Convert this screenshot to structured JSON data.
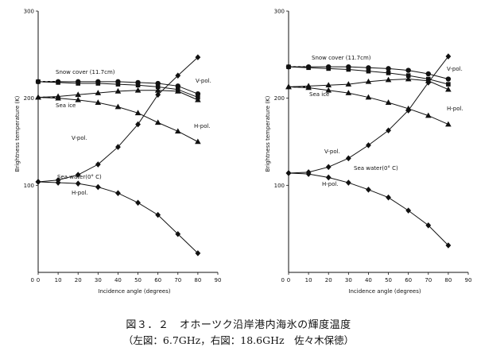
{
  "figure": {
    "caption": "図３．２　オホーツク沿岸港内海氷の輝度温度",
    "subcaption": "（左図：6.7GHz，右図：18.6GHz　佐々木保徳）"
  },
  "chart_data": [
    {
      "type": "line",
      "title": "",
      "xlabel": "Incidence angle (degrees)",
      "ylabel": "Brightness temperature (K)",
      "xlim": [
        0,
        90
      ],
      "ylim": [
        0,
        300
      ],
      "xticks": [
        0,
        10,
        20,
        30,
        40,
        50,
        60,
        70,
        80,
        90
      ],
      "yticks": [
        100,
        200,
        300
      ],
      "grid": false,
      "annotations": [
        "Snow cover (11.7cm)",
        "Sea ice",
        "V-pol.",
        "H-pol.",
        "V-pol.",
        "Sea water(0° C)",
        "H-pol."
      ],
      "series": [
        {
          "marker": "circle",
          "x": [
            0,
            10,
            20,
            30,
            40,
            50,
            60,
            70,
            80
          ],
          "y": [
            219,
            219,
            219,
            219,
            219,
            218,
            217,
            214,
            205
          ]
        },
        {
          "marker": "square",
          "x": [
            0,
            10,
            20,
            30,
            40,
            50,
            60,
            70,
            80
          ],
          "y": [
            219,
            218,
            217,
            217,
            216,
            215,
            213,
            210,
            201
          ]
        },
        {
          "marker": "triangle",
          "x": [
            0,
            10,
            20,
            30,
            40,
            50,
            60,
            70,
            80
          ],
          "y": [
            201,
            202,
            204,
            206,
            208,
            209,
            209,
            208,
            198
          ]
        },
        {
          "marker": "triangle",
          "x": [
            0,
            10,
            20,
            30,
            40,
            50,
            60,
            70,
            80
          ],
          "y": [
            201,
            200,
            198,
            195,
            190,
            183,
            172,
            162,
            150
          ]
        },
        {
          "marker": "diamond",
          "x": [
            0,
            10,
            20,
            30,
            40,
            50,
            60,
            70,
            80
          ],
          "y": [
            104,
            106,
            112,
            124,
            144,
            170,
            204,
            226,
            247
          ]
        },
        {
          "marker": "diamond",
          "x": [
            0,
            10,
            20,
            30,
            40,
            50,
            60,
            70,
            80
          ],
          "y": [
            104,
            103,
            102,
            98,
            91,
            80,
            66,
            44,
            22
          ]
        }
      ]
    },
    {
      "type": "line",
      "title": "",
      "xlabel": "Incidence angle (degrees)",
      "ylabel": "Brightness temperature (K)",
      "xlim": [
        0,
        90
      ],
      "ylim": [
        0,
        300
      ],
      "xticks": [
        0,
        10,
        20,
        30,
        40,
        50,
        60,
        70,
        80,
        90
      ],
      "yticks": [
        100,
        200,
        300
      ],
      "grid": false,
      "annotations": [
        "Snow cover (11.7cm)",
        "Sea ice",
        "V-pol.",
        "H-pol.",
        "V-pol.",
        "Sea water(0° C)",
        "H-pol."
      ],
      "series": [
        {
          "marker": "circle",
          "x": [
            0,
            10,
            20,
            30,
            40,
            50,
            60,
            70,
            80
          ],
          "y": [
            236,
            236,
            236,
            236,
            235,
            234,
            232,
            228,
            222
          ]
        },
        {
          "marker": "square",
          "x": [
            0,
            10,
            20,
            30,
            40,
            50,
            60,
            70,
            80
          ],
          "y": [
            236,
            235,
            234,
            233,
            231,
            229,
            226,
            222,
            216
          ]
        },
        {
          "marker": "triangle",
          "x": [
            0,
            10,
            20,
            30,
            40,
            50,
            60,
            70,
            80
          ],
          "y": [
            213,
            214,
            215,
            216,
            219,
            221,
            222,
            220,
            210
          ]
        },
        {
          "marker": "triangle",
          "x": [
            0,
            10,
            20,
            30,
            40,
            50,
            60,
            70,
            80
          ],
          "y": [
            213,
            212,
            209,
            206,
            201,
            195,
            188,
            180,
            170
          ]
        },
        {
          "marker": "diamond",
          "x": [
            0,
            10,
            20,
            30,
            40,
            50,
            60,
            70,
            80
          ],
          "y": [
            114,
            115,
            121,
            131,
            146,
            163,
            186,
            218,
            248
          ]
        },
        {
          "marker": "diamond",
          "x": [
            0,
            10,
            20,
            30,
            40,
            50,
            60,
            70,
            80
          ],
          "y": [
            114,
            113,
            109,
            103,
            95,
            86,
            71,
            54,
            31
          ]
        }
      ]
    }
  ]
}
